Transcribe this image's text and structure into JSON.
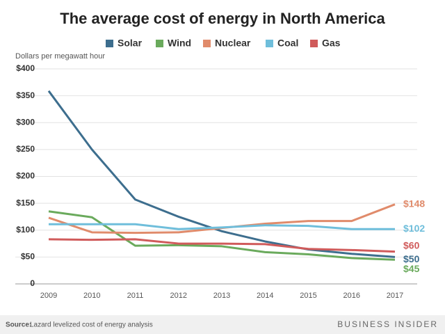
{
  "chart_data": {
    "type": "line",
    "title": "The average cost of energy in North America",
    "y_label": "Dollars per megawatt hour",
    "source_label": "Source:",
    "source": "Lazard levelized cost of energy analysis",
    "brand": "BUSINESS INSIDER",
    "categories": [
      "2009",
      "2010",
      "2011",
      "2012",
      "2013",
      "2014",
      "2015",
      "2016",
      "2017"
    ],
    "ylim": [
      0,
      400
    ],
    "yticks": [
      0,
      {
        "value": 50,
        "label": "$50"
      },
      {
        "value": 100,
        "label": "$100"
      },
      {
        "value": 150,
        "label": "$150"
      },
      {
        "value": 200,
        "label": "$200"
      },
      {
        "value": 250,
        "label": "$250"
      },
      {
        "value": 300,
        "label": "$300"
      },
      {
        "value": 350,
        "label": "$350"
      },
      {
        "value": 400,
        "label": "$400"
      }
    ],
    "grid": true,
    "series": [
      {
        "name": "Solar",
        "color": "#3d6e8e",
        "values": [
          359,
          250,
          157,
          125,
          98,
          79,
          64,
          56,
          50
        ],
        "value_labels": [
          null,
          null,
          null,
          null,
          null,
          null,
          null,
          null,
          "$50"
        ]
      },
      {
        "name": "Wind",
        "color": "#6aaa5c",
        "values": [
          135,
          124,
          71,
          72,
          70,
          59,
          55,
          48,
          45
        ],
        "value_labels": [
          null,
          null,
          null,
          null,
          null,
          null,
          null,
          null,
          "$45"
        ]
      },
      {
        "name": "Nuclear",
        "color": "#e08b6b",
        "values": [
          123,
          96,
          95,
          96,
          104,
          112,
          117,
          117,
          148
        ],
        "value_labels": [
          null,
          null,
          null,
          null,
          null,
          null,
          null,
          null,
          "$148"
        ]
      },
      {
        "name": "Coal",
        "color": "#6fbedb",
        "values": [
          111,
          111,
          111,
          102,
          105,
          109,
          108,
          102,
          102
        ],
        "value_labels": [
          null,
          null,
          null,
          null,
          null,
          null,
          null,
          null,
          "$102"
        ]
      },
      {
        "name": "Gas",
        "color": "#d05b5b",
        "values": [
          83,
          82,
          83,
          75,
          75,
          74,
          65,
          63,
          60
        ],
        "value_labels": [
          null,
          null,
          null,
          null,
          null,
          null,
          null,
          null,
          "$60"
        ]
      }
    ]
  }
}
